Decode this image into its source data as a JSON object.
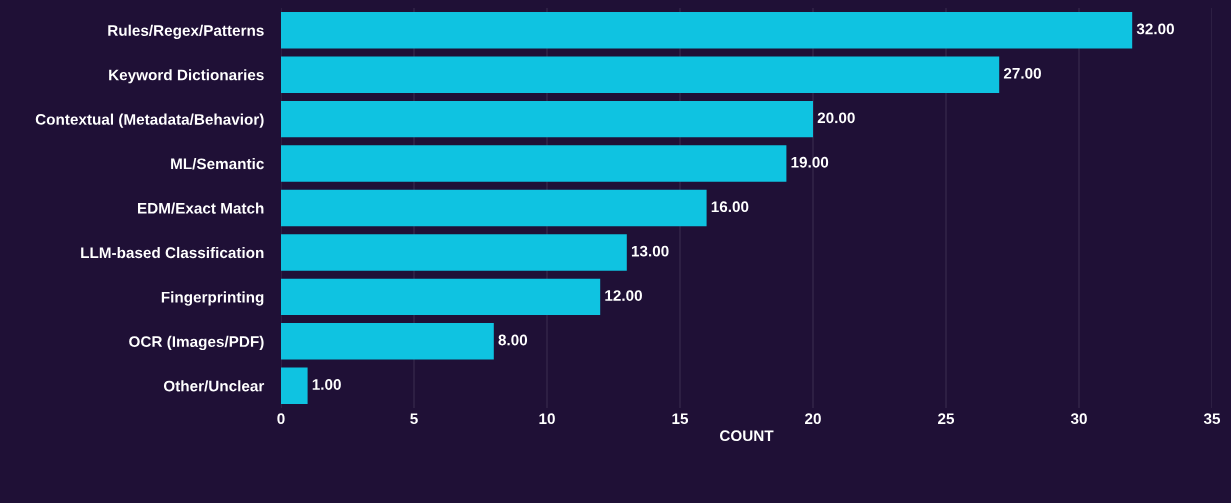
{
  "chart_data": {
    "type": "bar",
    "orientation": "horizontal",
    "xlabel": "COUNT",
    "categories": [
      "Rules/Regex/Patterns",
      "Keyword Dictionaries",
      "Contextual (Metadata/Behavior)",
      "ML/Semantic",
      "EDM/Exact Match",
      "LLM-based Classification",
      "Fingerprinting",
      "OCR (Images/PDF)",
      "Other/Unclear"
    ],
    "values": [
      32,
      27,
      20,
      19,
      16,
      13,
      12,
      8,
      1
    ],
    "value_labels": [
      "32.00",
      "27.00",
      "20.00",
      "19.00",
      "16.00",
      "13.00",
      "12.00",
      "8.00",
      "1.00"
    ],
    "color": "#0fc3e1",
    "xlim": [
      0,
      35
    ],
    "xticks": [
      0,
      5,
      10,
      15,
      20,
      25,
      30,
      35
    ],
    "grid": "x",
    "legend": false
  }
}
